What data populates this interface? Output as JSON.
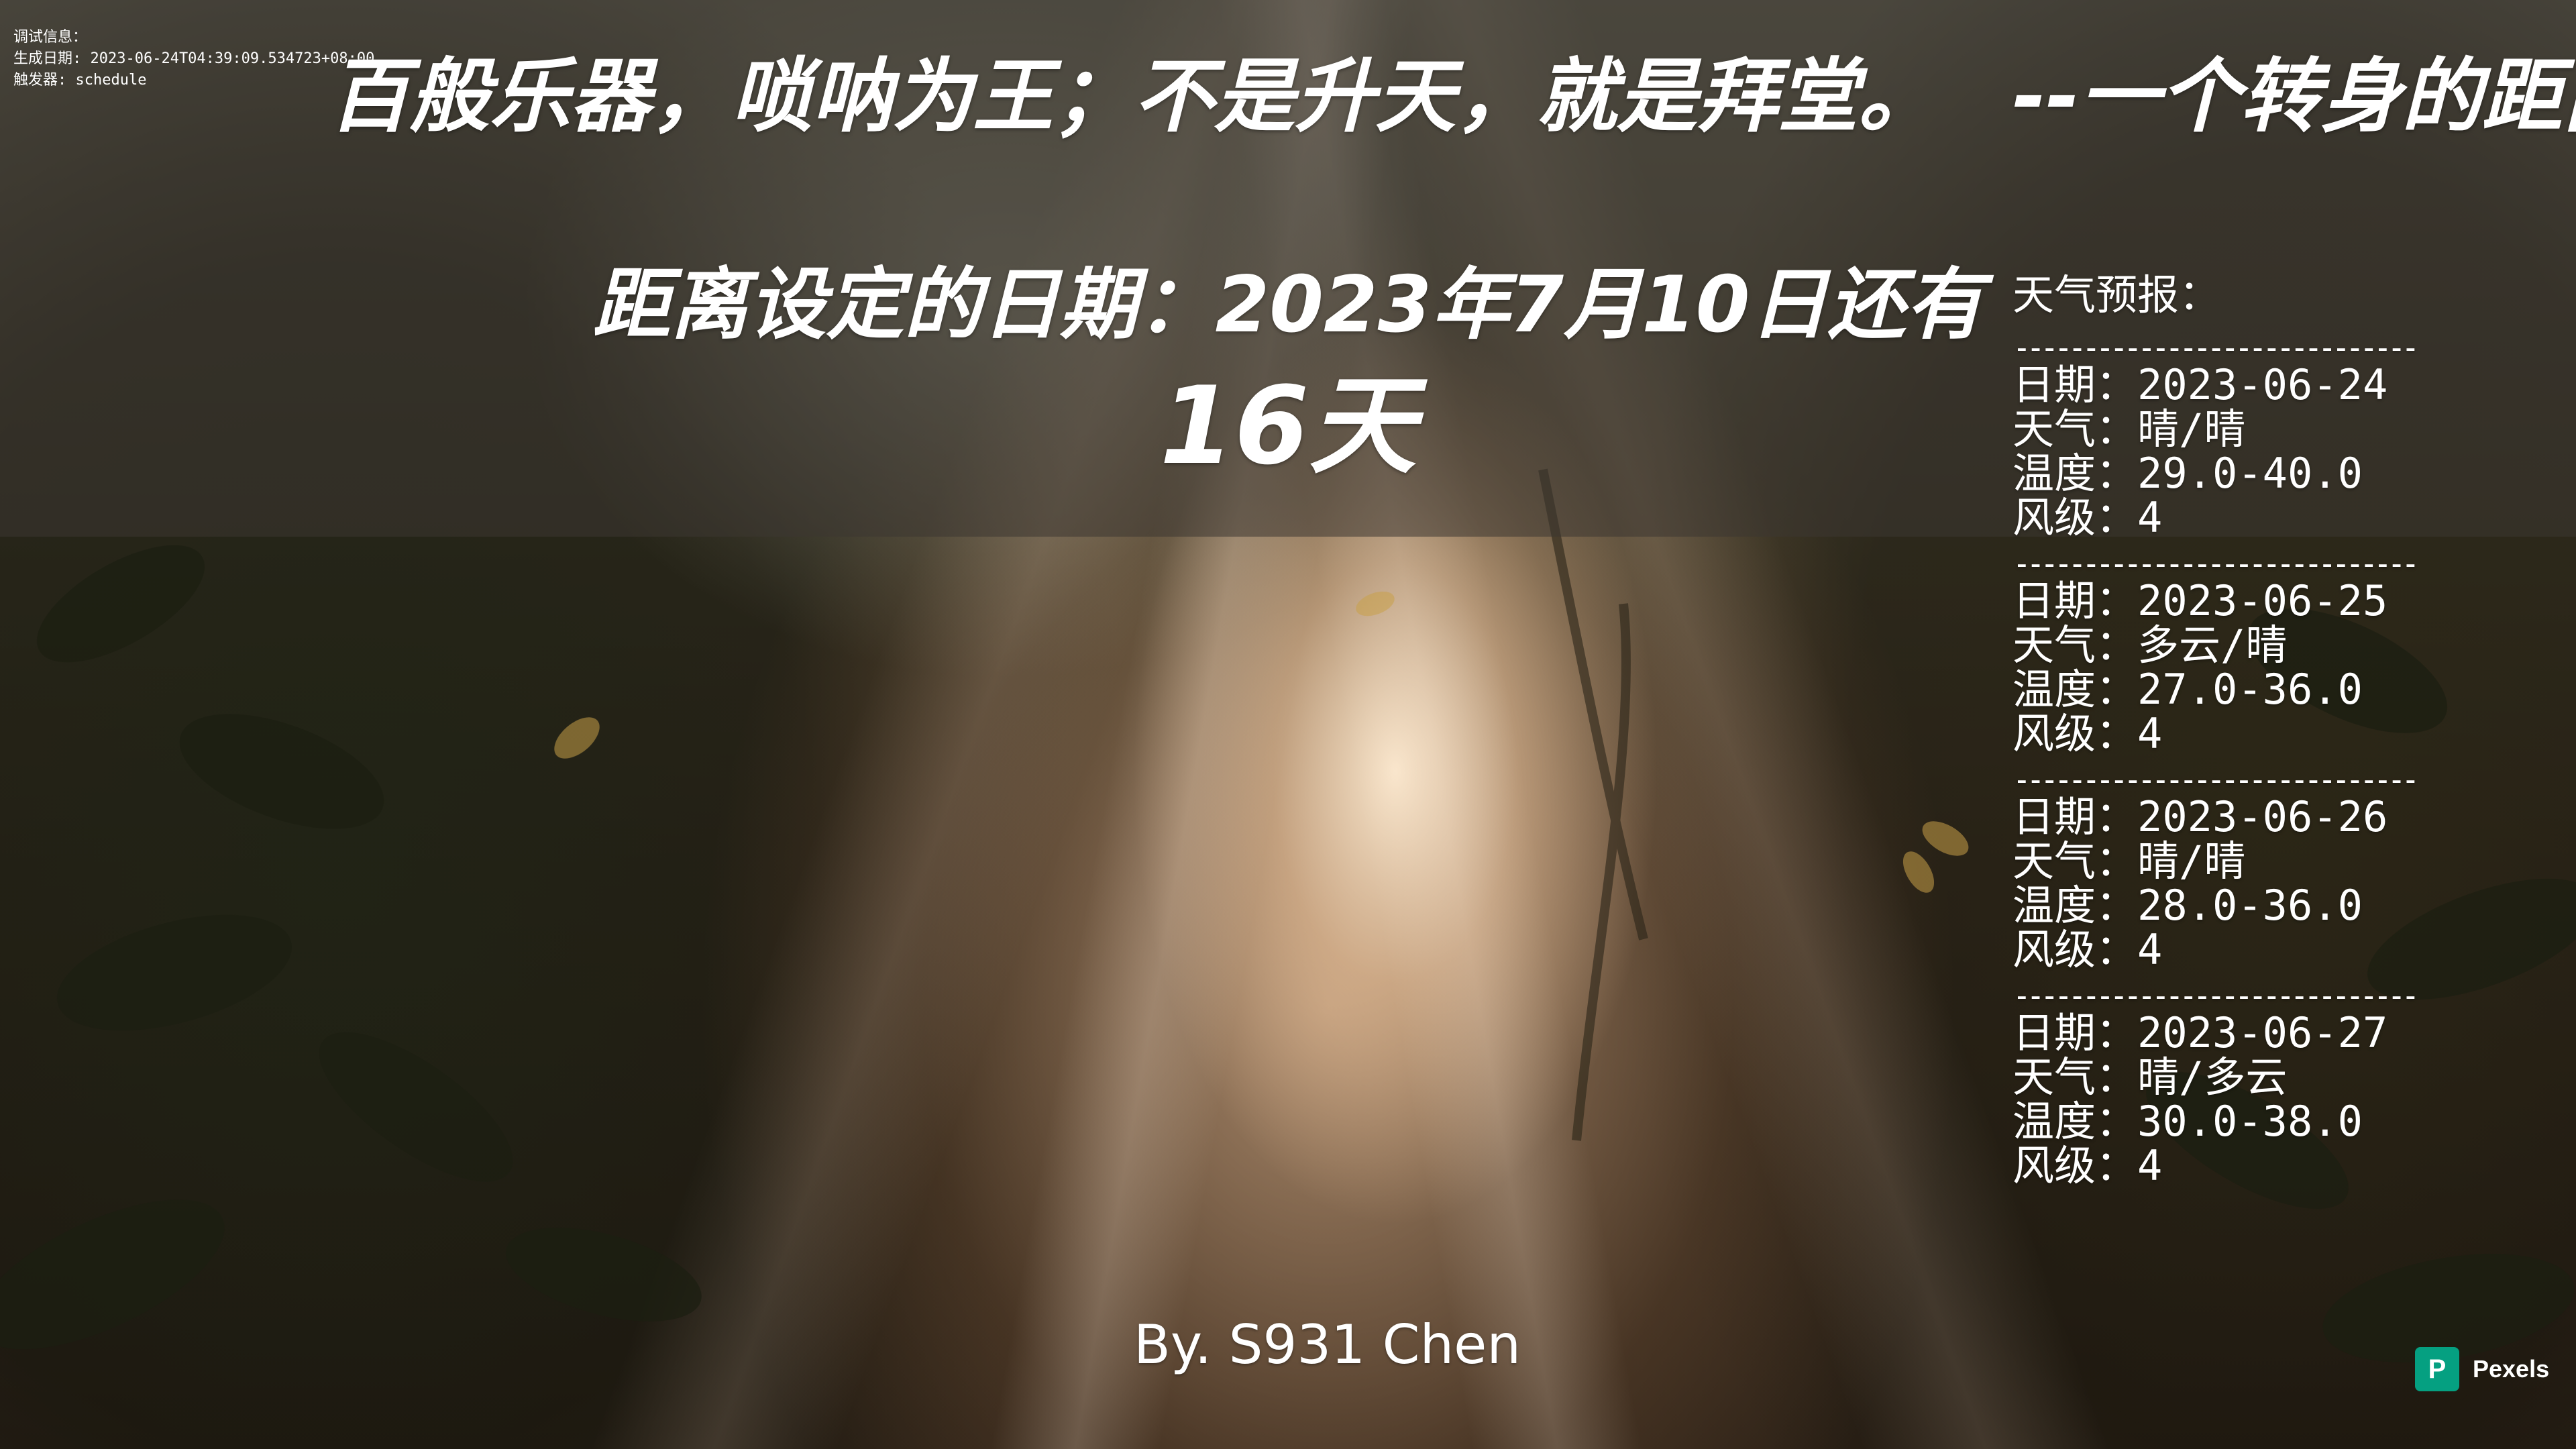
{
  "debug": {
    "label": "调试信息：",
    "generated": "生成日期: 2023-06-24T04:39:09.534723+08:00",
    "trigger": "触发器: schedule"
  },
  "quote": {
    "text": "百般乐器，唢呐为王；不是升天，就是拜堂。",
    "author": "--一个转身的距离"
  },
  "countdown": {
    "label": "距离设定的日期：2023年7月10日还有",
    "days": "16天"
  },
  "weather": {
    "title": "天气预报：",
    "separator": "-----------------------------",
    "field_labels": {
      "date": "日期：",
      "weather": "天气：",
      "temp": "温度：",
      "wind": "风级："
    },
    "days": [
      {
        "date": "2023-06-24",
        "weather": "晴/晴",
        "temp": "29.0-40.0",
        "wind": "4"
      },
      {
        "date": "2023-06-25",
        "weather": "多云/晴",
        "temp": "27.0-36.0",
        "wind": "4"
      },
      {
        "date": "2023-06-26",
        "weather": "晴/晴",
        "temp": "28.0-36.0",
        "wind": "4"
      },
      {
        "date": "2023-06-27",
        "weather": "晴/多云",
        "temp": "30.0-38.0",
        "wind": "4"
      }
    ]
  },
  "byline": "By. S931 Chen",
  "watermark": {
    "logo_letter": "P",
    "text": "Pexels",
    "color": "#05a081"
  }
}
